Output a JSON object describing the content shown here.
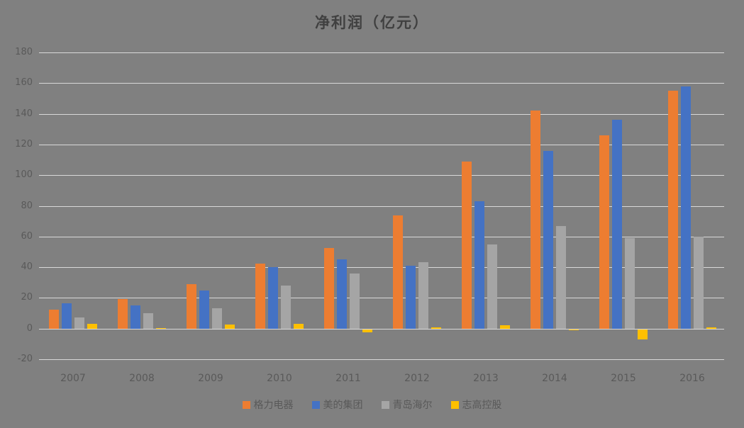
{
  "title": "净利润（亿元）",
  "colors": {
    "background": "#808080",
    "gridline": "#d9d9d9",
    "axis_text": "#595959",
    "title_text": "#404040"
  },
  "chart_data": {
    "type": "bar",
    "title": "净利润（亿元）",
    "categories": [
      "2007",
      "2008",
      "2009",
      "2010",
      "2011",
      "2012",
      "2013",
      "2014",
      "2015",
      "2016"
    ],
    "series": [
      {
        "key": "gree",
        "name": "格力电器",
        "color": "#ED7D31",
        "values": [
          12.5,
          19.5,
          29,
          42.5,
          52.5,
          74,
          109,
          142,
          126,
          155
        ]
      },
      {
        "key": "midea",
        "name": "美的集团",
        "color": "#4472C4",
        "values": [
          16.5,
          15,
          25,
          40,
          45,
          41,
          83,
          116,
          136,
          158
        ]
      },
      {
        "key": "haier",
        "name": "青岛海尔",
        "color": "#A5A5A5",
        "values": [
          7.5,
          10,
          13.5,
          28,
          36,
          43.5,
          55,
          67,
          59,
          60
        ]
      },
      {
        "key": "chigo",
        "name": "志高控股",
        "color": "#FFC000",
        "values": [
          3,
          0.5,
          2.5,
          3,
          -2,
          1,
          2,
          -0.5,
          -6.5,
          1
        ]
      }
    ],
    "ylim": [
      -20,
      180
    ],
    "ytick_step": 20,
    "grid": true,
    "legend_position": "bottom"
  }
}
